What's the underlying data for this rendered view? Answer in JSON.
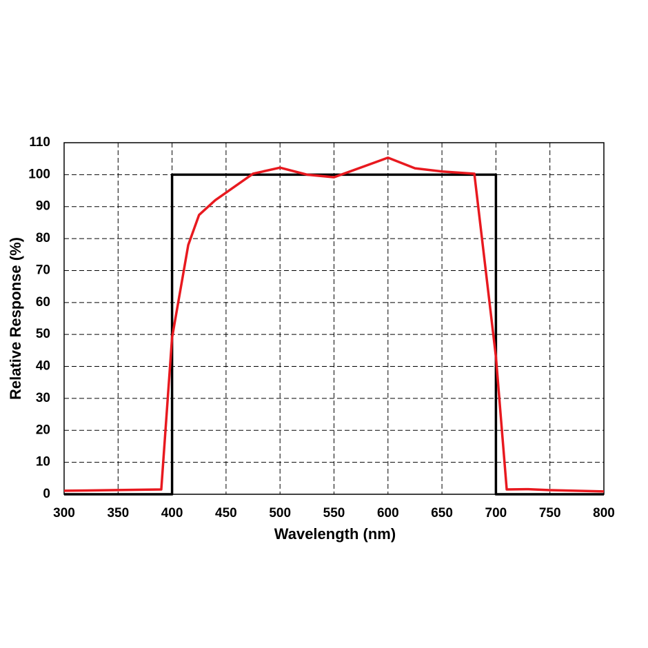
{
  "chart_data": {
    "type": "line",
    "x_label": "Wavelength (nm)",
    "y_label": "Relative Response (%)",
    "xlim": [
      300,
      800
    ],
    "xticks": [
      300,
      350,
      400,
      450,
      500,
      550,
      600,
      650,
      700,
      750,
      800
    ],
    "ylim": [
      0,
      110
    ],
    "yticks": [
      0,
      10,
      20,
      30,
      40,
      50,
      60,
      70,
      80,
      90,
      100,
      110
    ],
    "grid": true,
    "series": [
      {
        "color": "#000000",
        "x": [
          300,
          400,
          400,
          700,
          700,
          800
        ],
        "values": [
          0,
          0,
          100,
          100,
          0,
          0
        ]
      },
      {
        "color": "#e8191f",
        "x": [
          300,
          390,
          400,
          415,
          425,
          440,
          475,
          500,
          525,
          550,
          600,
          625,
          650,
          680,
          700,
          710,
          730,
          750,
          800
        ],
        "values": [
          1.1,
          1.5,
          49,
          78,
          87.4,
          92,
          100.3,
          102.2,
          100,
          99.2,
          105.3,
          102,
          101,
          100.3,
          43,
          1.5,
          1.6,
          1.3,
          0.9
        ]
      }
    ]
  }
}
